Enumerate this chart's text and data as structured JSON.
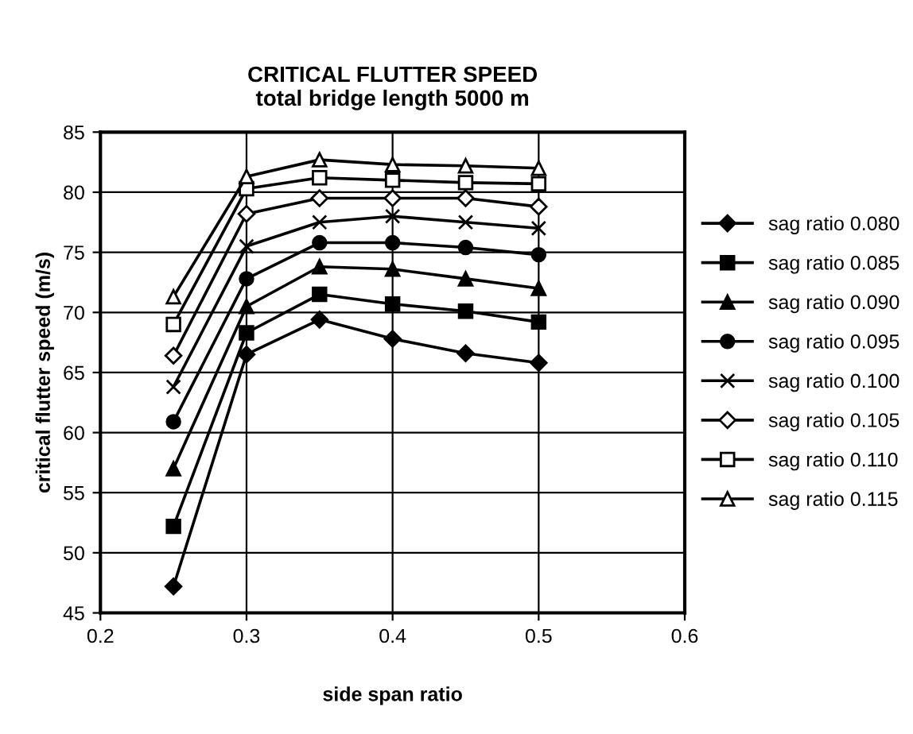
{
  "chart_data": {
    "type": "line",
    "title": "CRITICAL FLUTTER SPEED\ntotal bridge length 5000 m",
    "xlabel": "side span ratio",
    "ylabel": "critical flutter speed (m/s)",
    "x": [
      0.25,
      0.3,
      0.35,
      0.4,
      0.45,
      0.5
    ],
    "xlim": [
      0.2,
      0.6
    ],
    "xticks": [
      0.2,
      0.3,
      0.4,
      0.5,
      0.6
    ],
    "ylim": [
      45,
      85
    ],
    "yticks": [
      45,
      50,
      55,
      60,
      65,
      70,
      75,
      80,
      85
    ],
    "grid": true,
    "legend": "right",
    "series": [
      {
        "name": "sag ratio 0.080",
        "color": "#000000",
        "marker": "diamond",
        "values": [
          47.2,
          66.5,
          69.4,
          67.8,
          66.6,
          65.8
        ]
      },
      {
        "name": "sag ratio 0.085",
        "color": "#000000",
        "marker": "square",
        "values": [
          52.2,
          68.3,
          71.5,
          70.7,
          70.1,
          69.2
        ]
      },
      {
        "name": "sag ratio 0.090",
        "color": "#000000",
        "marker": "triangle",
        "values": [
          57.0,
          70.5,
          73.8,
          73.6,
          72.8,
          72.0
        ]
      },
      {
        "name": "sag ratio 0.095",
        "color": "#000000",
        "marker": "circle",
        "values": [
          60.9,
          72.8,
          75.8,
          75.8,
          75.4,
          74.8
        ]
      },
      {
        "name": "sag ratio 0.100",
        "color": "#000000",
        "marker": "cross",
        "values": [
          63.8,
          75.5,
          77.5,
          78.0,
          77.5,
          77.0
        ]
      },
      {
        "name": "sag ratio 0.105",
        "color": "#000000",
        "marker": "diamond",
        "values": [
          66.4,
          78.2,
          79.5,
          79.5,
          79.5,
          78.8
        ]
      },
      {
        "name": "sag ratio 0.110",
        "color": "#000000",
        "marker": "square",
        "values": [
          69.0,
          80.3,
          81.2,
          81.0,
          80.8,
          80.7
        ]
      },
      {
        "name": "sag ratio 0.115",
        "color": "#000000",
        "marker": "triangle",
        "values": [
          71.3,
          81.3,
          82.7,
          82.3,
          82.2,
          82.0
        ]
      }
    ]
  }
}
